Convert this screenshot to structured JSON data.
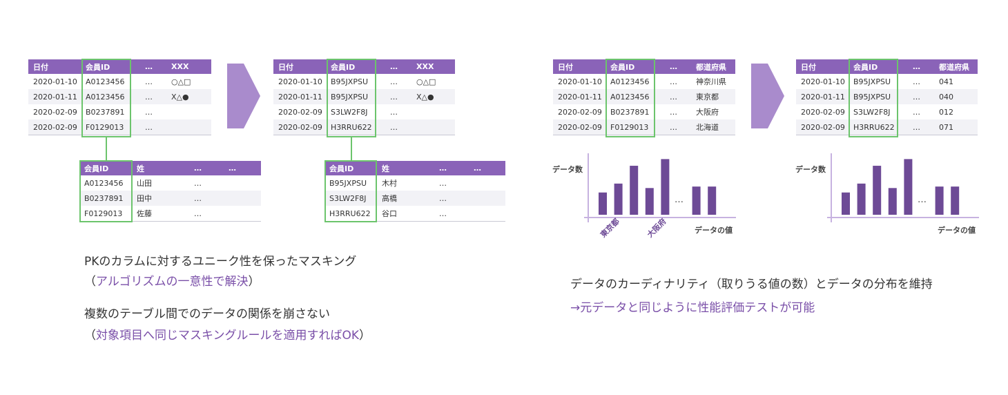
{
  "left": {
    "t1": {
      "headers": [
        "日付",
        "会員ID",
        "…",
        "XXX"
      ],
      "rows": [
        [
          "2020-01-10",
          "A0123456",
          "…",
          "○△□"
        ],
        [
          "2020-01-11",
          "A0123456",
          "…",
          "X△●"
        ],
        [
          "2020-02-09",
          "B0237891",
          "…",
          ""
        ],
        [
          "2020-02-09",
          "F0129013",
          "…",
          ""
        ]
      ]
    },
    "t2": {
      "headers": [
        "会員ID",
        "姓",
        "…",
        "…"
      ],
      "rows": [
        [
          "A0123456",
          "山田",
          "…",
          ""
        ],
        [
          "B0237891",
          "田中",
          "…",
          ""
        ],
        [
          "F0129013",
          "佐藤",
          "…",
          ""
        ]
      ]
    },
    "t3": {
      "headers": [
        "日付",
        "会員ID",
        "…",
        "XXX"
      ],
      "rows": [
        [
          "2020-01-10",
          "B95JXPSU",
          "…",
          "○△□"
        ],
        [
          "2020-01-11",
          "B95JXPSU",
          "…",
          "X△●"
        ],
        [
          "2020-02-09",
          "S3LW2F8J",
          "…",
          ""
        ],
        [
          "2020-02-09",
          "H3RRU622",
          "…",
          ""
        ]
      ]
    },
    "t4": {
      "headers": [
        "会員ID",
        "姓",
        "…",
        "…"
      ],
      "rows": [
        [
          "B95JXPSU",
          "木村",
          "…",
          ""
        ],
        [
          "S3LW2F8J",
          "高橋",
          "…",
          ""
        ],
        [
          "H3RRU622",
          "谷口",
          "…",
          ""
        ]
      ]
    },
    "caption1": "PKのカラムに対するユニーク性を保ったマスキング",
    "caption1_open": "（",
    "caption1_sub": "アルゴリズムの一意性で解決",
    "caption1_close": "）",
    "caption2": "複数のテーブル間でのデータの関係を崩さない",
    "caption2_open": "（",
    "caption2_sub": "対象項目へ同じマスキングルールを適用すればOK",
    "caption2_close": "）"
  },
  "right": {
    "t5": {
      "headers": [
        "日付",
        "会員ID",
        "…",
        "都道府県"
      ],
      "rows": [
        [
          "2020-01-10",
          "A0123456",
          "…",
          "神奈川県"
        ],
        [
          "2020-01-11",
          "A0123456",
          "…",
          "東京都"
        ],
        [
          "2020-02-09",
          "B0237891",
          "…",
          "大阪府"
        ],
        [
          "2020-02-09",
          "F0129013",
          "…",
          "北海道"
        ]
      ]
    },
    "t6": {
      "headers": [
        "日付",
        "会員ID",
        "…",
        "都道府県"
      ],
      "rows": [
        [
          "2020-01-10",
          "B95JXPSU",
          "…",
          "041"
        ],
        [
          "2020-01-11",
          "B95JXPSU",
          "…",
          "040"
        ],
        [
          "2020-02-09",
          "S3LW2F8J",
          "…",
          "012"
        ],
        [
          "2020-02-09",
          "H3RRU622",
          "…",
          "071"
        ]
      ]
    },
    "caption3": "データのカーディナリティ（取りうる値の数）とデータの分布を維持",
    "caption4": "→元データと同じように性能評価テストが可能"
  },
  "chart_data": [
    {
      "type": "bar",
      "ylabel": "データ数",
      "xlabel": "データの値",
      "categories": [
        "",
        "",
        "",
        "",
        "",
        "…",
        "",
        ""
      ],
      "category_labels": {
        "1": "東京都",
        "4": "大阪府"
      },
      "values": [
        30,
        42,
        66,
        36,
        75,
        null,
        38,
        38
      ],
      "ylim": [
        0,
        80
      ]
    },
    {
      "type": "bar",
      "ylabel": "データ数",
      "xlabel": "データの値",
      "categories": [
        "",
        "",
        "",
        "",
        "",
        "…",
        "",
        ""
      ],
      "values": [
        30,
        42,
        66,
        36,
        75,
        null,
        38,
        38
      ],
      "ylim": [
        0,
        80
      ]
    }
  ],
  "colors": {
    "header": "#8a63b8",
    "highlight": "#6cc46c",
    "arrow": "#a98bcc",
    "bar": "#6d4a96",
    "accent_text": "#7a4fa8"
  }
}
